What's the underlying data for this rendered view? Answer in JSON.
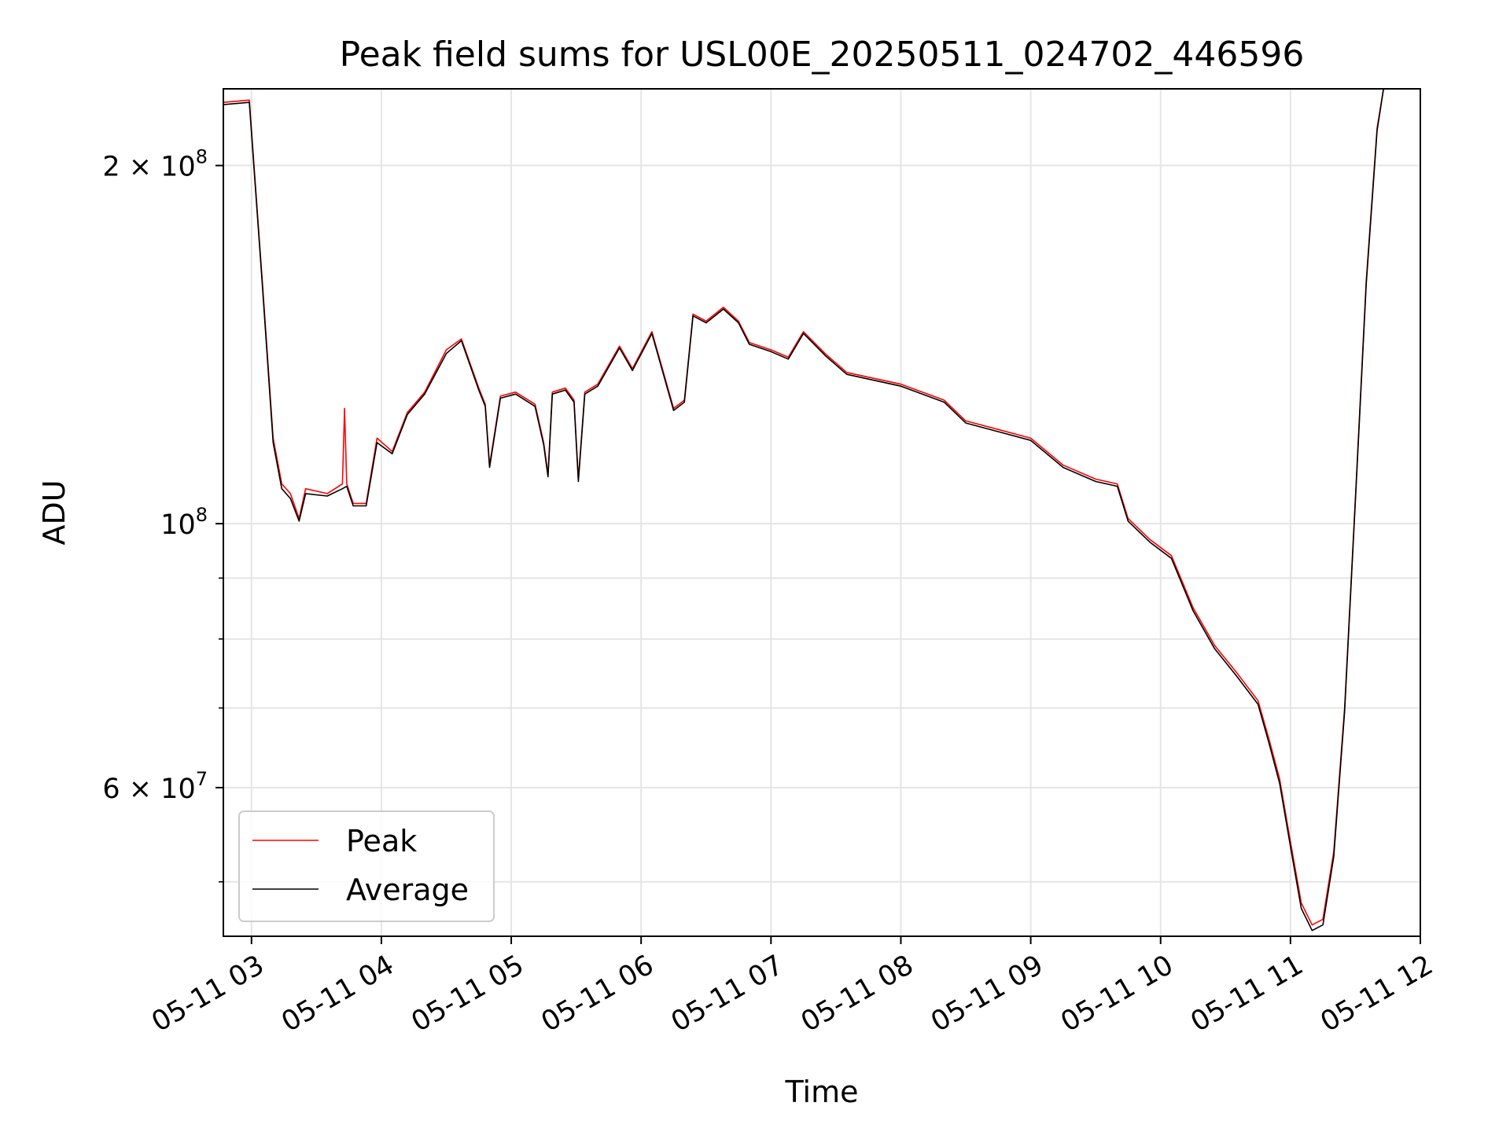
{
  "chart_data": {
    "type": "line",
    "title": "Peak field sums for USL00E_20250511_024702_446596",
    "xlabel": "Time",
    "ylabel": "ADU",
    "yscale": "log",
    "grid": true,
    "legend_position": "lower-left",
    "xlim": [
      "05-11 02:47",
      "05-11 12:00"
    ],
    "ylim": [
      45000000,
      232000000
    ],
    "x_ticks": [
      "05-11 03",
      "05-11 04",
      "05-11 05",
      "05-11 06",
      "05-11 07",
      "05-11 08",
      "05-11 09",
      "05-11 10",
      "05-11 11",
      "05-11 12"
    ],
    "y_major_ticks": [
      {
        "value": 60000000,
        "base": "6",
        "exp": "7"
      },
      {
        "value": 100000000,
        "base": "",
        "exp": "8"
      },
      {
        "value": 200000000,
        "base": "2",
        "exp": "8"
      }
    ],
    "y_minor_ticks": [
      50000000,
      70000000,
      80000000,
      90000000
    ],
    "series": [
      {
        "name": "Peak",
        "color": "#ff0000",
        "points": [
          [
            "05-11 02:47",
            226000000
          ],
          [
            "05-11 02:59",
            227000000
          ],
          [
            "05-11 03:05",
            160000000
          ],
          [
            "05-11 03:10",
            118000000
          ],
          [
            "05-11 03:14",
            108000000
          ],
          [
            "05-11 03:18",
            106000000
          ],
          [
            "05-11 03:22",
            101000000
          ],
          [
            "05-11 03:25",
            107000000
          ],
          [
            "05-11 03:35",
            106000000
          ],
          [
            "05-11 03:42",
            108000000
          ],
          [
            "05-11 03:43",
            125000000
          ],
          [
            "05-11 03:44",
            108000000
          ],
          [
            "05-11 03:47",
            104000000
          ],
          [
            "05-11 03:53",
            104000000
          ],
          [
            "05-11 03:58",
            118000000
          ],
          [
            "05-11 04:05",
            115000000
          ],
          [
            "05-11 04:12",
            124000000
          ],
          [
            "05-11 04:20",
            129000000
          ],
          [
            "05-11 04:30",
            140000000
          ],
          [
            "05-11 04:37",
            143000000
          ],
          [
            "05-11 04:45",
            130000000
          ],
          [
            "05-11 04:48",
            126000000
          ],
          [
            "05-11 04:50",
            112000000
          ],
          [
            "05-11 04:55",
            128000000
          ],
          [
            "05-11 05:02",
            129000000
          ],
          [
            "05-11 05:11",
            126000000
          ],
          [
            "05-11 05:15",
            117000000
          ],
          [
            "05-11 05:17",
            110000000
          ],
          [
            "05-11 05:19",
            129000000
          ],
          [
            "05-11 05:25",
            130000000
          ],
          [
            "05-11 05:29",
            127000000
          ],
          [
            "05-11 05:31",
            109000000
          ],
          [
            "05-11 05:34",
            129000000
          ],
          [
            "05-11 05:40",
            131000000
          ],
          [
            "05-11 05:50",
            141000000
          ],
          [
            "05-11 05:56",
            135000000
          ],
          [
            "05-11 06:05",
            145000000
          ],
          [
            "05-11 06:15",
            125000000
          ],
          [
            "05-11 06:20",
            127000000
          ],
          [
            "05-11 06:24",
            150000000
          ],
          [
            "05-11 06:30",
            148000000
          ],
          [
            "05-11 06:38",
            152000000
          ],
          [
            "05-11 06:45",
            148000000
          ],
          [
            "05-11 06:50",
            142000000
          ],
          [
            "05-11 07:00",
            140000000
          ],
          [
            "05-11 07:08",
            138000000
          ],
          [
            "05-11 07:15",
            145000000
          ],
          [
            "05-11 07:25",
            139000000
          ],
          [
            "05-11 07:35",
            134000000
          ],
          [
            "05-11 08:00",
            131000000
          ],
          [
            "05-11 08:20",
            127000000
          ],
          [
            "05-11 08:30",
            122000000
          ],
          [
            "05-11 08:45",
            120000000
          ],
          [
            "05-11 09:00",
            118000000
          ],
          [
            "05-11 09:15",
            112000000
          ],
          [
            "05-11 09:30",
            109000000
          ],
          [
            "05-11 09:40",
            108000000
          ],
          [
            "05-11 09:45",
            101000000
          ],
          [
            "05-11 09:55",
            97000000
          ],
          [
            "05-11 10:05",
            94000000
          ],
          [
            "05-11 10:15",
            85000000
          ],
          [
            "05-11 10:25",
            79000000
          ],
          [
            "05-11 10:35",
            75000000
          ],
          [
            "05-11 10:45",
            71000000
          ],
          [
            "05-11 10:50",
            66000000
          ],
          [
            "05-11 10:55",
            61000000
          ],
          [
            "05-11 11:00",
            54000000
          ],
          [
            "05-11 11:05",
            48000000
          ],
          [
            "05-11 11:10",
            46000000
          ],
          [
            "05-11 11:15",
            46500000
          ],
          [
            "05-11 11:20",
            53000000
          ],
          [
            "05-11 11:25",
            70000000
          ],
          [
            "05-11 11:30",
            105000000
          ],
          [
            "05-11 11:35",
            160000000
          ],
          [
            "05-11 11:40",
            215000000
          ],
          [
            "05-11 11:43",
            232000000
          ],
          [
            "05-11 12:00",
            232000000
          ]
        ]
      },
      {
        "name": "Average",
        "color": "#000000",
        "points": [
          [
            "05-11 02:47",
            225000000
          ],
          [
            "05-11 02:59",
            226000000
          ],
          [
            "05-11 03:05",
            159000000
          ],
          [
            "05-11 03:10",
            117000000
          ],
          [
            "05-11 03:14",
            107000000
          ],
          [
            "05-11 03:18",
            105000000
          ],
          [
            "05-11 03:22",
            100500000
          ],
          [
            "05-11 03:25",
            106000000
          ],
          [
            "05-11 03:35",
            105500000
          ],
          [
            "05-11 03:42",
            107000000
          ],
          [
            "05-11 03:44",
            107500000
          ],
          [
            "05-11 03:47",
            103500000
          ],
          [
            "05-11 03:53",
            103500000
          ],
          [
            "05-11 03:58",
            117000000
          ],
          [
            "05-11 04:05",
            114500000
          ],
          [
            "05-11 04:12",
            123500000
          ],
          [
            "05-11 04:20",
            128500000
          ],
          [
            "05-11 04:30",
            139000000
          ],
          [
            "05-11 04:37",
            142500000
          ],
          [
            "05-11 04:45",
            129500000
          ],
          [
            "05-11 04:48",
            125500000
          ],
          [
            "05-11 04:50",
            111500000
          ],
          [
            "05-11 04:55",
            127500000
          ],
          [
            "05-11 05:02",
            128500000
          ],
          [
            "05-11 05:11",
            125500000
          ],
          [
            "05-11 05:15",
            116500000
          ],
          [
            "05-11 05:17",
            109500000
          ],
          [
            "05-11 05:19",
            128500000
          ],
          [
            "05-11 05:25",
            129500000
          ],
          [
            "05-11 05:29",
            126500000
          ],
          [
            "05-11 05:31",
            108500000
          ],
          [
            "05-11 05:34",
            128500000
          ],
          [
            "05-11 05:40",
            130500000
          ],
          [
            "05-11 05:50",
            140500000
          ],
          [
            "05-11 05:56",
            134500000
          ],
          [
            "05-11 06:05",
            144500000
          ],
          [
            "05-11 06:15",
            124500000
          ],
          [
            "05-11 06:20",
            126500000
          ],
          [
            "05-11 06:24",
            149500000
          ],
          [
            "05-11 06:30",
            147500000
          ],
          [
            "05-11 06:38",
            151500000
          ],
          [
            "05-11 06:45",
            147500000
          ],
          [
            "05-11 06:50",
            141500000
          ],
          [
            "05-11 07:00",
            139500000
          ],
          [
            "05-11 07:08",
            137500000
          ],
          [
            "05-11 07:15",
            144500000
          ],
          [
            "05-11 07:25",
            138500000
          ],
          [
            "05-11 07:35",
            133500000
          ],
          [
            "05-11 08:00",
            130500000
          ],
          [
            "05-11 08:20",
            126500000
          ],
          [
            "05-11 08:30",
            121500000
          ],
          [
            "05-11 08:45",
            119500000
          ],
          [
            "05-11 09:00",
            117500000
          ],
          [
            "05-11 09:15",
            111500000
          ],
          [
            "05-11 09:30",
            108500000
          ],
          [
            "05-11 09:40",
            107500000
          ],
          [
            "05-11 09:45",
            100500000
          ],
          [
            "05-11 09:55",
            96500000
          ],
          [
            "05-11 10:05",
            93500000
          ],
          [
            "05-11 10:15",
            84500000
          ],
          [
            "05-11 10:25",
            78500000
          ],
          [
            "05-11 10:35",
            74500000
          ],
          [
            "05-11 10:45",
            70500000
          ],
          [
            "05-11 10:50",
            65500000
          ],
          [
            "05-11 10:55",
            60500000
          ],
          [
            "05-11 11:00",
            53500000
          ],
          [
            "05-11 11:05",
            47500000
          ],
          [
            "05-11 11:10",
            45500000
          ],
          [
            "05-11 11:15",
            46000000
          ],
          [
            "05-11 11:20",
            52500000
          ],
          [
            "05-11 11:25",
            69500000
          ],
          [
            "05-11 11:30",
            104500000
          ],
          [
            "05-11 11:35",
            159000000
          ],
          [
            "05-11 11:40",
            214000000
          ],
          [
            "05-11 11:43",
            232000000
          ],
          [
            "05-11 12:00",
            232000000
          ]
        ]
      }
    ]
  }
}
